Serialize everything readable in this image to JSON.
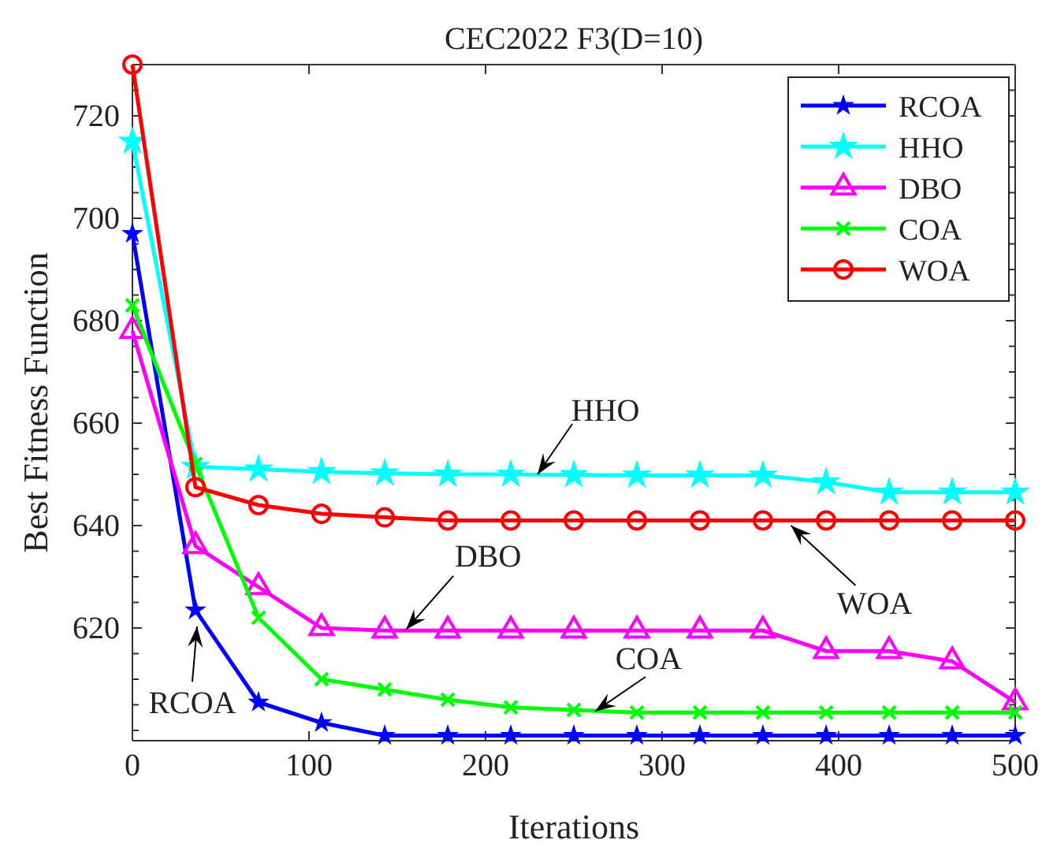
{
  "chart_data": {
    "type": "line",
    "title": "CEC2022 F3(D=10)",
    "xlabel": "Iterations",
    "ylabel": "Best Fitness Function",
    "x": [
      0,
      35.7,
      71.4,
      107.1,
      142.9,
      178.6,
      214.3,
      250,
      285.7,
      321.4,
      357.1,
      392.9,
      428.6,
      464.3,
      500
    ],
    "series": [
      {
        "name": "RCOA",
        "color": "#0000ff",
        "marker": "star",
        "values": [
          697,
          623.5,
          605.5,
          601.5,
          599,
          599,
          599,
          599,
          599,
          599,
          599,
          599,
          599,
          599,
          599
        ]
      },
      {
        "name": "HHO",
        "color": "#00ffff",
        "marker": "star",
        "values": [
          715,
          651.5,
          651,
          650.5,
          650.2,
          650,
          650,
          649.9,
          649.8,
          649.8,
          649.8,
          648.5,
          646.5,
          646.5,
          646.5
        ]
      },
      {
        "name": "DBO",
        "color": "#ff00ff",
        "marker": "triangle",
        "values": [
          678,
          636,
          628,
          620,
          619.5,
          619.5,
          619.5,
          619.5,
          619.5,
          619.5,
          619.5,
          615.5,
          615.5,
          613.5,
          605.5
        ]
      },
      {
        "name": "COA",
        "color": "#00ff00",
        "marker": "cross",
        "values": [
          683,
          652,
          622,
          610,
          608,
          606,
          604.5,
          604,
          603.5,
          603.5,
          603.5,
          603.5,
          603.5,
          603.5,
          603.5
        ]
      },
      {
        "name": "WOA",
        "color": "#ff0000",
        "marker": "circle",
        "values": [
          730,
          647.5,
          644,
          642.3,
          641.6,
          641,
          641,
          641,
          641,
          641,
          641,
          641,
          641,
          641,
          641
        ]
      }
    ],
    "xlim": [
      0,
      500
    ],
    "xticks": [
      0,
      100,
      200,
      300,
      400,
      500
    ],
    "ylim": [
      598,
      730
    ],
    "yticks": [
      {
        "value": 600,
        "label": null
      },
      {
        "value": 605,
        "label": null
      },
      {
        "value": 610,
        "label": null
      },
      {
        "value": 615,
        "label": null
      },
      620,
      {
        "value": 625,
        "label": null
      },
      {
        "value": 630,
        "label": null
      },
      {
        "value": 635,
        "label": null
      },
      640,
      {
        "value": 645,
        "label": null
      },
      {
        "value": 650,
        "label": null
      },
      {
        "value": 655,
        "label": null
      },
      660,
      {
        "value": 665,
        "label": null
      },
      {
        "value": 670,
        "label": null
      },
      {
        "value": 675,
        "label": null
      },
      680,
      {
        "value": 685,
        "label": null
      },
      {
        "value": 690,
        "label": null
      },
      {
        "value": 695,
        "label": null
      },
      700,
      {
        "value": 705,
        "label": null
      },
      {
        "value": 710,
        "label": null
      },
      {
        "value": 715,
        "label": null
      },
      720,
      {
        "value": 725,
        "label": null
      }
    ],
    "annotations": [
      {
        "text": "HHO",
        "x": 229.5,
        "y": 650
      },
      {
        "text": "DBO",
        "x": 155,
        "y": 619.7
      },
      {
        "text": "WOA",
        "x": 373,
        "y": 640
      },
      {
        "text": "COA",
        "x": 262,
        "y": 603.7
      },
      {
        "text": "RCOA",
        "x": 36.6,
        "y": 620.3
      }
    ],
    "legend": "top right",
    "grid": false,
    "line_style": "solid"
  }
}
